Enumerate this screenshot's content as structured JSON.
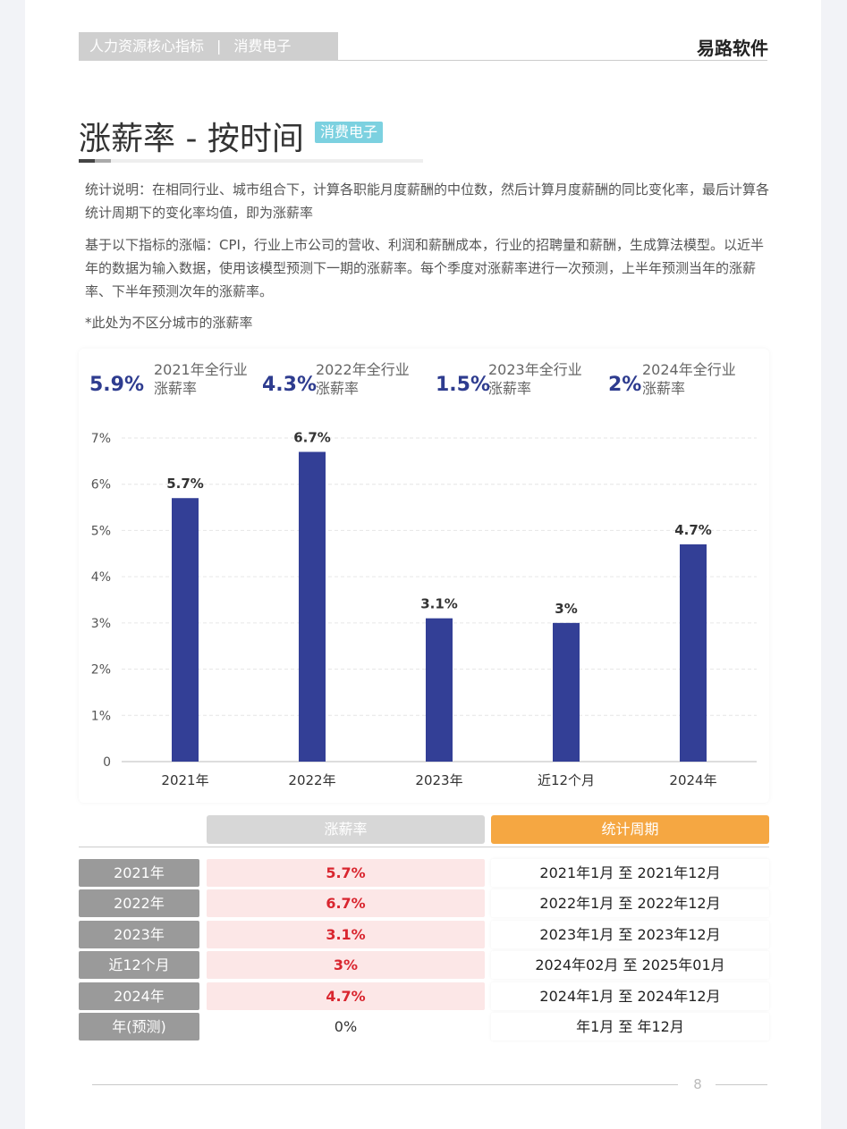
{
  "header": {
    "section": "人力资源核心指标",
    "separator": "|",
    "industry": "消费电子",
    "brand": "易路软件"
  },
  "title": {
    "text": "涨薪率 - 按时间",
    "badge": "消费电子"
  },
  "description": {
    "p1": "统计说明：在相同行业、城市组合下，计算各职能月度薪酬的中位数，然后计算月度薪酬的同比变化率，最后计算各统计周期下的变化率均值，即为涨薪率",
    "p2": "基于以下指标的涨幅：CPI，行业上市公司的营收、利润和薪酬成本，行业的招聘量和薪酬，生成算法模型。以近半年的数据为输入数据，使用该模型预测下一期的涨薪率。每个季度对涨薪率进行一次预测，上半年预测当年的涨薪率、下半年预测次年的涨薪率。",
    "note": "*此处为不区分城市的涨薪率"
  },
  "kpis": [
    {
      "value": "5.9%",
      "label1": "2021年全行业",
      "label2": "涨薪率"
    },
    {
      "value": "4.3%",
      "label1": "2022年全行业",
      "label2": "涨薪率"
    },
    {
      "value": "1.5%",
      "label1": "2023年全行业",
      "label2": "涨薪率"
    },
    {
      "value": "2%",
      "label1": "2024年全行业",
      "label2": "涨薪率"
    }
  ],
  "chart_data": {
    "type": "bar",
    "categories": [
      "2021年",
      "2022年",
      "2023年",
      "近12个月",
      "2024年"
    ],
    "values": [
      5.7,
      6.7,
      3.1,
      3,
      4.7
    ],
    "data_labels": [
      "5.7%",
      "6.7%",
      "3.1%",
      "3%",
      "4.7%"
    ],
    "y_ticks": [
      "0",
      "1%",
      "2%",
      "3%",
      "4%",
      "5%",
      "6%",
      "7%"
    ],
    "ylim": [
      0,
      7
    ],
    "grid": true,
    "bar_color": "#333f96"
  },
  "table": {
    "header_rate": "涨薪率",
    "header_period": "统计周期",
    "rows": [
      {
        "year": "2021年",
        "rate": "5.7%",
        "period": "2021年1月 至 2021年12月"
      },
      {
        "year": "2022年",
        "rate": "6.7%",
        "period": "2022年1月 至 2022年12月"
      },
      {
        "year": "2023年",
        "rate": "3.1%",
        "period": "2023年1月 至 2023年12月"
      },
      {
        "year": "近12个月",
        "rate": "3%",
        "period": "2024年02月 至 2025年01月"
      },
      {
        "year": "2024年",
        "rate": "4.7%",
        "period": "2024年1月 至 2024年12月"
      },
      {
        "year": "年(预测)",
        "rate": "0%",
        "period": "年1月 至 年12月"
      }
    ]
  },
  "footer": {
    "page": "8"
  }
}
